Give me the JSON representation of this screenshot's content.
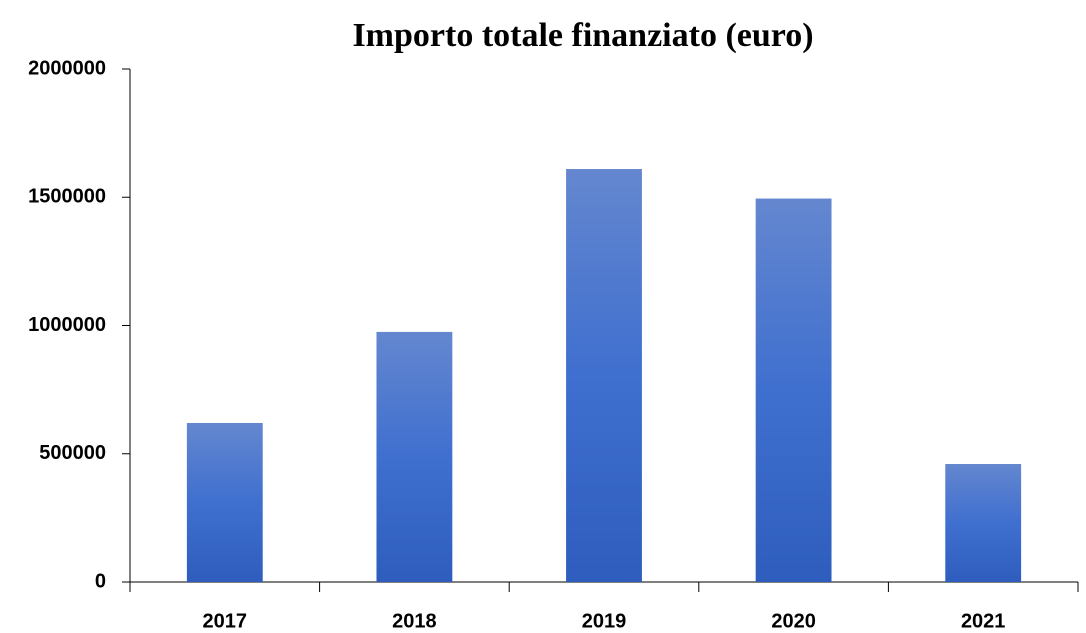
{
  "chart_data": {
    "type": "bar",
    "title": "Importo totale finanziato (euro)",
    "categories": [
      "2017",
      "2018",
      "2019",
      "2020",
      "2021"
    ],
    "values": [
      620000,
      975000,
      1610000,
      1495000,
      460000
    ],
    "color": "#3a66c4",
    "ylim": [
      0,
      2000000
    ],
    "yticks": [
      0,
      500000,
      1000000,
      1500000,
      2000000
    ],
    "grid": false
  }
}
